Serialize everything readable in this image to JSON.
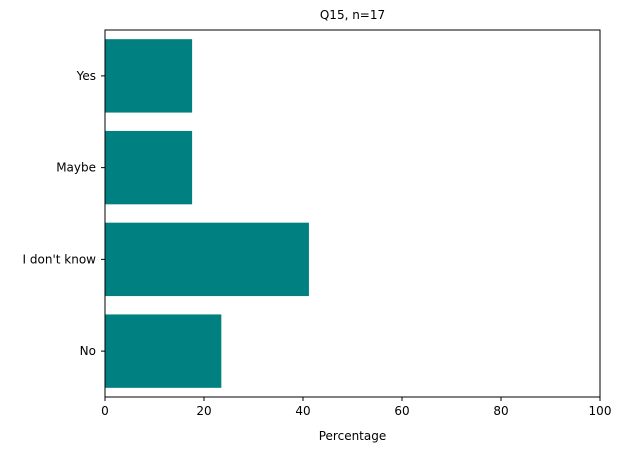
{
  "chart_data": {
    "type": "bar",
    "orientation": "horizontal",
    "title": "Q15, n=17",
    "xlabel": "Percentage",
    "ylabel": "",
    "categories": [
      "Yes",
      "Maybe",
      "I don't know",
      "No"
    ],
    "values": [
      17.6,
      17.6,
      41.2,
      23.5
    ],
    "xlim": [
      0,
      100
    ],
    "xticks": [
      0,
      20,
      40,
      60,
      80,
      100
    ],
    "grid": false,
    "legend": "none",
    "bar_color": "#008080"
  }
}
